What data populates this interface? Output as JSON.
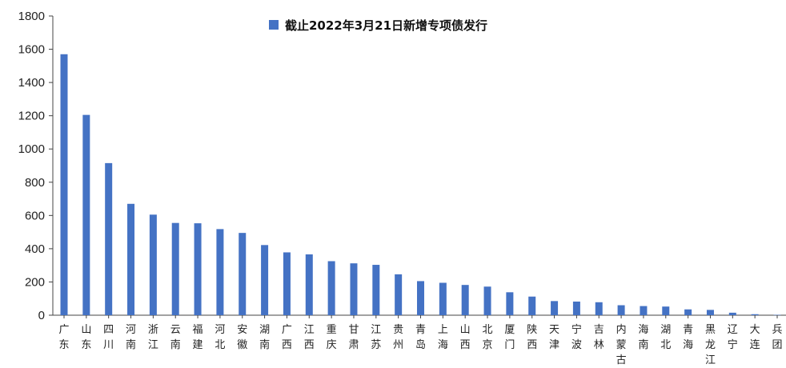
{
  "chart_data": {
    "type": "bar",
    "legend": {
      "label": "截止2022年3月21日新增专项债发行",
      "position": "top-center"
    },
    "categories": [
      "广东",
      "山东",
      "四川",
      "河南",
      "浙江",
      "云南",
      "福建",
      "河北",
      "安徽",
      "湖南",
      "广西",
      "江西",
      "重庆",
      "甘肃",
      "江苏",
      "贵州",
      "青岛",
      "上海",
      "山西",
      "北京",
      "厦门",
      "陕西",
      "天津",
      "宁波",
      "吉林",
      "内蒙古",
      "海南",
      "湖北",
      "青海",
      "黑龙江",
      "辽宁",
      "大连",
      "兵团"
    ],
    "series": [
      {
        "name": "截止2022年3月21日新增专项债发行",
        "color": "#4472C4",
        "values": [
          1570,
          1205,
          915,
          670,
          605,
          555,
          553,
          518,
          495,
          422,
          378,
          366,
          325,
          312,
          303,
          246,
          205,
          195,
          182,
          172,
          138,
          112,
          85,
          82,
          78,
          60,
          55,
          52,
          35,
          32,
          15,
          6,
          2
        ]
      }
    ],
    "yticks": [
      "0",
      "200",
      "400",
      "600",
      "800",
      "1000",
      "1200",
      "1400",
      "1600",
      "1800"
    ],
    "ylim": [
      0,
      1800
    ],
    "grid": false,
    "title": "",
    "xlabel": "",
    "ylabel": ""
  }
}
